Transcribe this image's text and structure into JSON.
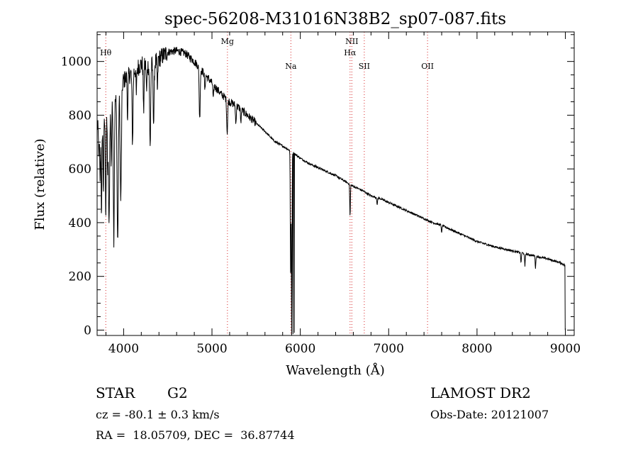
{
  "chart_data": {
    "type": "line",
    "title": "spec-56208-M31016N38B2_sp07-087.fits",
    "xlabel": "Wavelength (Å)",
    "ylabel": "Flux (relative)",
    "xlim": [
      3700,
      9100
    ],
    "ylim": [
      -20,
      1110
    ],
    "xticks": [
      4000,
      5000,
      6000,
      7000,
      8000,
      9000
    ],
    "yticks": [
      0,
      200,
      400,
      600,
      800,
      1000
    ],
    "lines": [
      {
        "label": "Hθ",
        "wavelength": 3798,
        "label_row": 1
      },
      {
        "label": "Mg",
        "wavelength": 5175,
        "label_row": 0
      },
      {
        "label": "Na",
        "wavelength": 5893,
        "label_row": 2
      },
      {
        "label": "NII",
        "wavelength": 6583,
        "label_row": 0
      },
      {
        "label": "Hα",
        "wavelength": 6563,
        "label_row": 1
      },
      {
        "label": "SII",
        "wavelength": 6724,
        "label_row": 2
      },
      {
        "label": "OII",
        "wavelength": 7440,
        "label_row": 2
      }
    ],
    "continuum": [
      [
        3700,
        760
      ],
      [
        3800,
        780
      ],
      [
        3900,
        850
      ],
      [
        4000,
        930
      ],
      [
        4100,
        960
      ],
      [
        4200,
        990
      ],
      [
        4300,
        980
      ],
      [
        4400,
        1010
      ],
      [
        4500,
        1035
      ],
      [
        4600,
        1040
      ],
      [
        4700,
        1030
      ],
      [
        4800,
        1000
      ],
      [
        4900,
        960
      ],
      [
        5000,
        920
      ],
      [
        5100,
        880
      ],
      [
        5200,
        850
      ],
      [
        5300,
        830
      ],
      [
        5400,
        800
      ],
      [
        5500,
        770
      ],
      [
        5600,
        740
      ],
      [
        5700,
        705
      ],
      [
        5800,
        685
      ],
      [
        5900,
        665
      ],
      [
        6000,
        640
      ],
      [
        6100,
        620
      ],
      [
        6200,
        605
      ],
      [
        6300,
        590
      ],
      [
        6400,
        575
      ],
      [
        6500,
        555
      ],
      [
        6600,
        535
      ],
      [
        6700,
        520
      ],
      [
        6800,
        500
      ],
      [
        6900,
        490
      ],
      [
        7000,
        475
      ],
      [
        7100,
        460
      ],
      [
        7200,
        445
      ],
      [
        7300,
        430
      ],
      [
        7400,
        415
      ],
      [
        7500,
        400
      ],
      [
        7600,
        390
      ],
      [
        7700,
        375
      ],
      [
        7800,
        360
      ],
      [
        7900,
        345
      ],
      [
        8000,
        330
      ],
      [
        8200,
        310
      ],
      [
        8400,
        295
      ],
      [
        8600,
        280
      ],
      [
        8800,
        265
      ],
      [
        8950,
        250
      ],
      [
        9000,
        240
      ]
    ],
    "absorption_features": [
      {
        "wavelength": 3720,
        "depth": 100,
        "width": 8
      },
      {
        "wavelength": 3734,
        "depth": 200,
        "width": 6
      },
      {
        "wavelength": 3750,
        "depth": 350,
        "width": 6
      },
      {
        "wavelength": 3771,
        "depth": 250,
        "width": 6
      },
      {
        "wavelength": 3798,
        "depth": 350,
        "width": 6
      },
      {
        "wavelength": 3820,
        "depth": 200,
        "width": 6
      },
      {
        "wavelength": 3835,
        "depth": 430,
        "width": 8
      },
      {
        "wavelength": 3860,
        "depth": 200,
        "width": 6
      },
      {
        "wavelength": 3889,
        "depth": 500,
        "width": 8
      },
      {
        "wavelength": 3933,
        "depth": 550,
        "width": 10
      },
      {
        "wavelength": 3968,
        "depth": 420,
        "width": 10
      },
      {
        "wavelength": 4045,
        "depth": 150,
        "width": 6
      },
      {
        "wavelength": 4101,
        "depth": 260,
        "width": 8
      },
      {
        "wavelength": 4144,
        "depth": 100,
        "width": 6
      },
      {
        "wavelength": 4226,
        "depth": 180,
        "width": 6
      },
      {
        "wavelength": 4260,
        "depth": 100,
        "width": 6
      },
      {
        "wavelength": 4300,
        "depth": 300,
        "width": 8
      },
      {
        "wavelength": 4340,
        "depth": 220,
        "width": 8
      },
      {
        "wavelength": 4383,
        "depth": 120,
        "width": 6
      },
      {
        "wavelength": 4861,
        "depth": 190,
        "width": 8
      },
      {
        "wavelength": 4920,
        "depth": 60,
        "width": 6
      },
      {
        "wavelength": 5015,
        "depth": 60,
        "width": 6
      },
      {
        "wavelength": 5172,
        "depth": 120,
        "width": 8
      },
      {
        "wavelength": 5270,
        "depth": 70,
        "width": 6
      },
      {
        "wavelength": 5328,
        "depth": 50,
        "width": 6
      },
      {
        "wavelength": 5890,
        "depth": 450,
        "width": 5
      },
      {
        "wavelength": 5902,
        "depth": 700,
        "width": 5
      },
      {
        "wavelength": 6563,
        "depth": 120,
        "width": 5
      },
      {
        "wavelength": 6870,
        "depth": 30,
        "width": 5
      },
      {
        "wavelength": 7600,
        "depth": 30,
        "width": 5
      },
      {
        "wavelength": 8498,
        "depth": 40,
        "width": 5
      },
      {
        "wavelength": 8542,
        "depth": 50,
        "width": 5
      },
      {
        "wavelength": 8662,
        "depth": 45,
        "width": 5
      }
    ],
    "bottom_dips": [
      {
        "wavelength": 5917,
        "flux": -15
      },
      {
        "wavelength": 5932,
        "flux": -10
      },
      {
        "wavelength": 9000,
        "flux": 0
      }
    ]
  },
  "info": {
    "object_class": "STAR",
    "subclass": "G2",
    "survey": "LAMOST DR2",
    "redshift": "cz = -80.1 ± 0.3 km/s",
    "obs_date": "Obs-Date: 20121007",
    "coords": "RA =  18.05709, DEC =  36.87744"
  },
  "colors": {
    "axes": "#000000",
    "spectrum": "#000000",
    "line_marker": "#d62728"
  }
}
